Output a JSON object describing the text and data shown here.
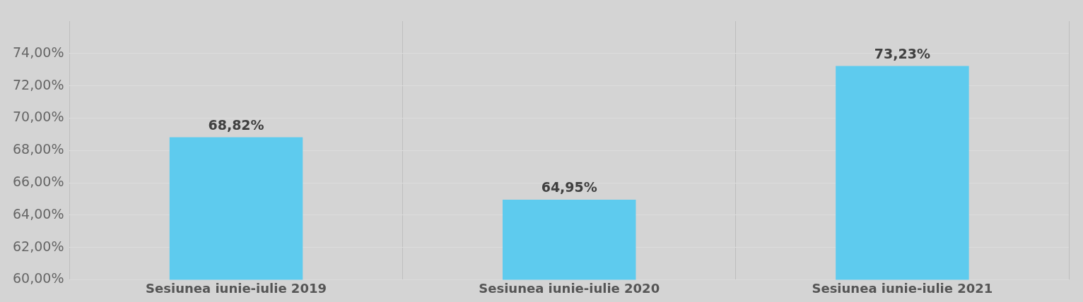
{
  "chart_data": {
    "type": "bar",
    "categories": [
      "Sesiunea iunie-iulie 2019",
      "Sesiunea iunie-iulie 2020",
      "Sesiunea iunie-iulie 2021"
    ],
    "values": [
      68.82,
      64.95,
      73.23
    ],
    "value_labels": [
      "68,82%",
      "64,95%",
      "73,23%"
    ],
    "color": "#5ecbee",
    "ylim": [
      60,
      76
    ],
    "yticks": [
      {
        "value": 60,
        "label": "60,00%"
      },
      {
        "value": 62,
        "label": "62,00%"
      },
      {
        "value": 64,
        "label": "64,00%"
      },
      {
        "value": 66,
        "label": "66,00%"
      },
      {
        "value": 68,
        "label": "68,00%"
      },
      {
        "value": 70,
        "label": "70,00%"
      },
      {
        "value": 72,
        "label": "72,00%"
      },
      {
        "value": 74,
        "label": "74,00%"
      }
    ],
    "grid": true,
    "legend": false
  }
}
